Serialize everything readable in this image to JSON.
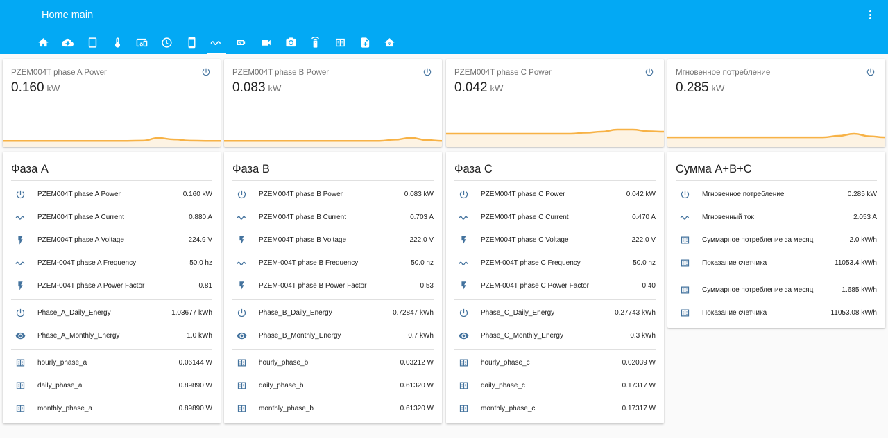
{
  "app": {
    "title": "Home main"
  },
  "colors": {
    "header": "#03a9f4",
    "icon": "#44739e",
    "graph_line": "#f7b246",
    "graph_fill": "#fdf3e3"
  },
  "tabs": [
    {
      "icon": "home-icon"
    },
    {
      "icon": "cloud-download-icon"
    },
    {
      "icon": "tablet-icon"
    },
    {
      "icon": "thermometer-icon"
    },
    {
      "icon": "devices-icon"
    },
    {
      "icon": "clock-icon"
    },
    {
      "icon": "cellphone-icon"
    },
    {
      "icon": "sine-wave-icon",
      "active": true
    },
    {
      "icon": "battery-charging-icon"
    },
    {
      "icon": "video-camera-icon"
    },
    {
      "icon": "camera-icon"
    },
    {
      "icon": "remote-icon"
    },
    {
      "icon": "meter-icon"
    },
    {
      "icon": "file-plus-icon"
    },
    {
      "icon": "home-wifi-icon"
    }
  ],
  "sensors": [
    {
      "name": "PZEM004T phase A Power",
      "value": "0.160",
      "unit": "kW",
      "graph": [
        0.16,
        0.16,
        0.16,
        0.16,
        0.16,
        0.16,
        0.16,
        0.16,
        0.16,
        0.17,
        0.3,
        0.23,
        0.17,
        0.16,
        0.16
      ]
    },
    {
      "name": "PZEM004T phase B Power",
      "value": "0.083",
      "unit": "kW",
      "graph": [
        0.16,
        0.16,
        0.16,
        0.16,
        0.16,
        0.16,
        0.16,
        0.16,
        0.16,
        0.16,
        0.16,
        0.22,
        0.31,
        0.2,
        0.16
      ]
    },
    {
      "name": "PZEM004T phase C Power",
      "value": "0.042",
      "unit": "kW",
      "graph": [
        0.5,
        0.5,
        0.5,
        0.5,
        0.5,
        0.5,
        0.5,
        0.5,
        0.5,
        0.55,
        0.6,
        0.7,
        0.7,
        0.62,
        0.6
      ]
    },
    {
      "name": "Мгновенное потребление",
      "value": "0.285",
      "unit": "kW",
      "graph": [
        0.33,
        0.33,
        0.33,
        0.33,
        0.33,
        0.33,
        0.33,
        0.33,
        0.33,
        0.33,
        0.33,
        0.4,
        0.5,
        0.38,
        0.33
      ]
    }
  ],
  "entity_cards": [
    {
      "title": "Фаза A",
      "groups": [
        [
          {
            "icon": "power-icon",
            "name": "PZEM004T phase A Power",
            "value": "0.160 kW"
          },
          {
            "icon": "sine-wave-icon",
            "name": "PZEM004T phase A Current",
            "value": "0.880 A"
          },
          {
            "icon": "flash-icon",
            "name": "PZEM004T phase A Voltage",
            "value": "224.9 V"
          },
          {
            "icon": "sine-wave-icon",
            "name": "PZEM-004T phase A Frequency",
            "value": "50.0 hz"
          },
          {
            "icon": "flash-icon",
            "name": "PZEM-004T phase A Power Factor",
            "value": "0.81"
          }
        ],
        [
          {
            "icon": "power-icon",
            "name": "Phase_A_Daily_Energy",
            "value": "1.03677 kWh"
          },
          {
            "icon": "eye-icon",
            "name": "Phase_A_Monthly_Energy",
            "value": "1.0 kWh"
          }
        ],
        [
          {
            "icon": "counter-icon",
            "name": "hourly_phase_a",
            "value": "0.06144 W"
          },
          {
            "icon": "counter-icon",
            "name": "daily_phase_a",
            "value": "0.89890 W"
          },
          {
            "icon": "counter-icon",
            "name": "monthly_phase_a",
            "value": "0.89890 W"
          }
        ]
      ]
    },
    {
      "title": "Фаза B",
      "groups": [
        [
          {
            "icon": "power-icon",
            "name": "PZEM004T phase B Power",
            "value": "0.083 kW"
          },
          {
            "icon": "sine-wave-icon",
            "name": "PZEM004T phase B Current",
            "value": "0.703 A"
          },
          {
            "icon": "flash-icon",
            "name": "PZEM004T phase B Voltage",
            "value": "222.0 V"
          },
          {
            "icon": "sine-wave-icon",
            "name": "PZEM-004T phase B Frequency",
            "value": "50.0 hz"
          },
          {
            "icon": "flash-icon",
            "name": "PZEM-004T phase B Power Factor",
            "value": "0.53"
          }
        ],
        [
          {
            "icon": "power-icon",
            "name": "Phase_B_Daily_Energy",
            "value": "0.72847 kWh"
          },
          {
            "icon": "eye-icon",
            "name": "Phase_B_Monthly_Energy",
            "value": "0.7 kWh"
          }
        ],
        [
          {
            "icon": "counter-icon",
            "name": "hourly_phase_b",
            "value": "0.03212 W"
          },
          {
            "icon": "counter-icon",
            "name": "daily_phase_b",
            "value": "0.61320 W"
          },
          {
            "icon": "counter-icon",
            "name": "monthly_phase_b",
            "value": "0.61320 W"
          }
        ]
      ]
    },
    {
      "title": "Фаза C",
      "groups": [
        [
          {
            "icon": "power-icon",
            "name": "PZEM004T phase C Power",
            "value": "0.042 kW"
          },
          {
            "icon": "sine-wave-icon",
            "name": "PZEM004T phase C Current",
            "value": "0.470 A"
          },
          {
            "icon": "flash-icon",
            "name": "PZEM004T phase C Voltage",
            "value": "222.0 V"
          },
          {
            "icon": "sine-wave-icon",
            "name": "PZEM-004T phase C Frequency",
            "value": "50.0 hz"
          },
          {
            "icon": "flash-icon",
            "name": "PZEM-004T phase C Power Factor",
            "value": "0.40"
          }
        ],
        [
          {
            "icon": "power-icon",
            "name": "Phase_C_Daily_Energy",
            "value": "0.27743 kWh"
          },
          {
            "icon": "eye-icon",
            "name": "Phase_C_Monthly_Energy",
            "value": "0.3 kWh"
          }
        ],
        [
          {
            "icon": "counter-icon",
            "name": "hourly_phase_c",
            "value": "0.02039 W"
          },
          {
            "icon": "counter-icon",
            "name": "daily_phase_c",
            "value": "0.17317 W"
          },
          {
            "icon": "counter-icon",
            "name": "monthly_phase_c",
            "value": "0.17317 W"
          }
        ]
      ]
    },
    {
      "title": "Сумма A+B+C",
      "groups": [
        [
          {
            "icon": "power-icon",
            "name": "Мгновенное потребление",
            "value": "0.285 kW"
          },
          {
            "icon": "sine-wave-icon",
            "name": "Мгновенный ток",
            "value": "2.053 A"
          },
          {
            "icon": "counter-icon",
            "name": "Суммарное потребление за месяц",
            "value": "2.0 kW/h"
          },
          {
            "icon": "counter-icon",
            "name": "Показание счетчика",
            "value": "11053.4 kW/h"
          }
        ],
        [
          {
            "icon": "counter-icon",
            "name": "Суммарное потребление за месяц",
            "value": "1.685 kW/h"
          },
          {
            "icon": "counter-icon",
            "name": "Показание счетчика",
            "value": "11053.08 kW/h"
          }
        ]
      ]
    }
  ]
}
